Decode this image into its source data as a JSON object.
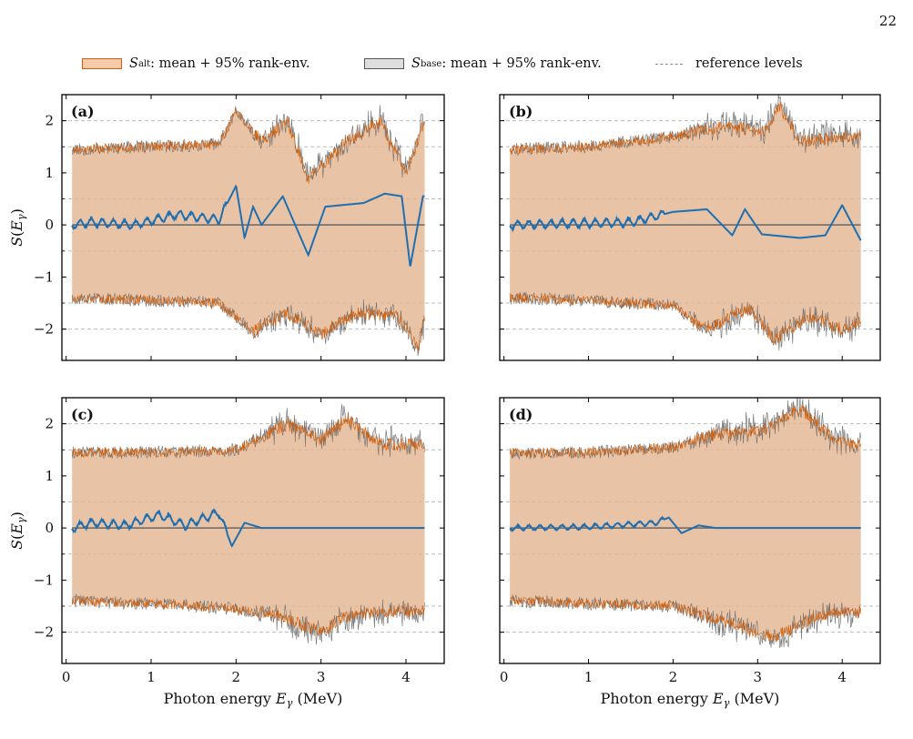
{
  "page_number": "22",
  "legend": {
    "alt_symbol": "S",
    "alt_sub": "alt",
    "alt_label": ": mean + 95% rank-env.",
    "base_symbol": "S",
    "base_sub": "base",
    "base_label": ": mean + 95% rank-env.",
    "ref_label": "reference levels"
  },
  "colors": {
    "alt_line": "#d35f0a",
    "alt_fill": "#f0b07e",
    "base_line": "#6e6e6e",
    "base_fill": "#c4c4c4",
    "overlap_fill": "#d6b8a0",
    "mean_line": "#1f6fb0",
    "zero_line": "#666666",
    "ref_line": "#bdbdbd"
  },
  "chart_data": [
    {
      "type": "area",
      "panel_label": "(a)",
      "xlabel": "",
      "ylabel": "S(Eγ)",
      "xlim": [
        -0.05,
        4.45
      ],
      "ylim": [
        -2.6,
        2.5
      ],
      "xticks": [
        0,
        1,
        2,
        3,
        4
      ],
      "yticks": [
        -2,
        -1,
        0,
        1,
        2
      ],
      "reference_levels": [
        -2,
        -1.5,
        -0.5,
        0.5,
        1.5,
        2
      ],
      "x_range": [
        0.07,
        4.22
      ],
      "envelope_upper_points": [
        [
          0.07,
          1.45
        ],
        [
          1.0,
          1.5
        ],
        [
          1.8,
          1.55
        ],
        [
          2.0,
          2.2
        ],
        [
          2.3,
          1.6
        ],
        [
          2.6,
          2.0
        ],
        [
          2.85,
          0.9
        ],
        [
          3.3,
          1.6
        ],
        [
          3.7,
          2.0
        ],
        [
          4.0,
          1.0
        ],
        [
          4.22,
          2.0
        ]
      ],
      "envelope_lower_points": [
        [
          0.07,
          -1.4
        ],
        [
          1.0,
          -1.45
        ],
        [
          1.8,
          -1.5
        ],
        [
          2.2,
          -2.05
        ],
        [
          2.6,
          -1.7
        ],
        [
          3.0,
          -2.1
        ],
        [
          3.4,
          -1.7
        ],
        [
          3.9,
          -1.75
        ],
        [
          4.15,
          -2.35
        ],
        [
          4.22,
          -1.8
        ]
      ],
      "series": [
        {
          "name": "mean",
          "points": [
            [
              0.07,
              0.0
            ],
            [
              0.3,
              0.05
            ],
            [
              0.8,
              0.0
            ],
            [
              1.3,
              0.2
            ],
            [
              1.8,
              0.1
            ],
            [
              2.0,
              0.75
            ],
            [
              2.1,
              -0.25
            ],
            [
              2.2,
              0.35
            ],
            [
              2.3,
              0.0
            ],
            [
              2.55,
              0.55
            ],
            [
              2.85,
              -0.58
            ],
            [
              3.05,
              0.35
            ],
            [
              3.5,
              0.42
            ],
            [
              3.75,
              0.6
            ],
            [
              3.95,
              0.55
            ],
            [
              4.05,
              -0.8
            ],
            [
              4.2,
              0.55
            ]
          ]
        }
      ]
    },
    {
      "type": "area",
      "panel_label": "(b)",
      "xlabel": "",
      "ylabel": "",
      "xlim": [
        -0.05,
        4.45
      ],
      "ylim": [
        -2.6,
        2.5
      ],
      "xticks": [
        0,
        1,
        2,
        3,
        4
      ],
      "yticks": [
        -2,
        -1,
        0,
        1,
        2
      ],
      "reference_levels": [
        -2,
        -1.5,
        -0.5,
        0.5,
        1.5,
        2
      ],
      "x_range": [
        0.07,
        4.22
      ],
      "envelope_upper_points": [
        [
          0.07,
          1.45
        ],
        [
          1.0,
          1.5
        ],
        [
          2.0,
          1.7
        ],
        [
          2.6,
          1.9
        ],
        [
          3.1,
          1.8
        ],
        [
          3.25,
          2.3
        ],
        [
          3.5,
          1.6
        ],
        [
          4.0,
          1.7
        ],
        [
          4.22,
          1.7
        ]
      ],
      "envelope_lower_points": [
        [
          0.07,
          -1.4
        ],
        [
          1.0,
          -1.45
        ],
        [
          2.0,
          -1.55
        ],
        [
          2.4,
          -2.0
        ],
        [
          2.9,
          -1.6
        ],
        [
          3.2,
          -2.2
        ],
        [
          3.6,
          -1.75
        ],
        [
          4.0,
          -2.0
        ],
        [
          4.22,
          -1.85
        ]
      ],
      "series": [
        {
          "name": "mean",
          "points": [
            [
              0.07,
              0.0
            ],
            [
              1.5,
              0.05
            ],
            [
              2.0,
              0.25
            ],
            [
              2.4,
              0.3
            ],
            [
              2.7,
              -0.2
            ],
            [
              2.85,
              0.3
            ],
            [
              3.05,
              -0.18
            ],
            [
              3.5,
              -0.25
            ],
            [
              3.8,
              -0.2
            ],
            [
              4.0,
              0.38
            ],
            [
              4.22,
              -0.3
            ]
          ]
        }
      ]
    },
    {
      "type": "area",
      "panel_label": "(c)",
      "xlabel": "Photon energy Eγ (MeV)",
      "ylabel": "S(Eγ)",
      "xlim": [
        -0.05,
        4.45
      ],
      "ylim": [
        -2.6,
        2.5
      ],
      "xticks": [
        0,
        1,
        2,
        3,
        4
      ],
      "yticks": [
        -2,
        -1,
        0,
        1,
        2
      ],
      "reference_levels": [
        -2,
        -1.5,
        -0.5,
        0.5,
        1.5,
        2
      ],
      "x_range": [
        0.07,
        4.22
      ],
      "envelope_upper_points": [
        [
          0.07,
          1.45
        ],
        [
          1.0,
          1.45
        ],
        [
          2.0,
          1.5
        ],
        [
          2.6,
          2.0
        ],
        [
          3.0,
          1.7
        ],
        [
          3.3,
          2.1
        ],
        [
          3.7,
          1.6
        ],
        [
          4.22,
          1.6
        ]
      ],
      "envelope_lower_points": [
        [
          0.07,
          -1.4
        ],
        [
          1.0,
          -1.45
        ],
        [
          2.0,
          -1.55
        ],
        [
          2.5,
          -1.7
        ],
        [
          3.0,
          -2.0
        ],
        [
          3.3,
          -1.7
        ],
        [
          3.8,
          -1.6
        ],
        [
          4.22,
          -1.6
        ]
      ],
      "series": [
        {
          "name": "mean",
          "points": [
            [
              0.07,
              0.0
            ],
            [
              0.3,
              0.1
            ],
            [
              0.7,
              0.05
            ],
            [
              1.1,
              0.25
            ],
            [
              1.4,
              0.05
            ],
            [
              1.8,
              0.3
            ],
            [
              1.95,
              -0.35
            ],
            [
              2.1,
              0.1
            ],
            [
              2.3,
              0.0
            ],
            [
              4.22,
              0.0
            ]
          ]
        }
      ]
    },
    {
      "type": "area",
      "panel_label": "(d)",
      "xlabel": "Photon energy Eγ (MeV)",
      "ylabel": "",
      "xlim": [
        -0.05,
        4.45
      ],
      "ylim": [
        -2.6,
        2.5
      ],
      "xticks": [
        0,
        1,
        2,
        3,
        4
      ],
      "yticks": [
        -2,
        -1,
        0,
        1,
        2
      ],
      "reference_levels": [
        -2,
        -1.5,
        -0.5,
        0.5,
        1.5,
        2
      ],
      "x_range": [
        0.07,
        4.22
      ],
      "envelope_upper_points": [
        [
          0.07,
          1.45
        ],
        [
          1.0,
          1.45
        ],
        [
          2.0,
          1.55
        ],
        [
          2.5,
          1.8
        ],
        [
          3.1,
          1.9
        ],
        [
          3.5,
          2.3
        ],
        [
          3.9,
          1.7
        ],
        [
          4.22,
          1.6
        ]
      ],
      "envelope_lower_points": [
        [
          0.07,
          -1.4
        ],
        [
          1.0,
          -1.45
        ],
        [
          2.0,
          -1.5
        ],
        [
          2.6,
          -1.8
        ],
        [
          3.2,
          -2.1
        ],
        [
          3.7,
          -1.7
        ],
        [
          4.22,
          -1.6
        ]
      ],
      "series": [
        {
          "name": "mean",
          "points": [
            [
              0.07,
              0.0
            ],
            [
              1.0,
              0.02
            ],
            [
              1.8,
              0.1
            ],
            [
              1.95,
              0.2
            ],
            [
              2.1,
              -0.1
            ],
            [
              2.3,
              0.05
            ],
            [
              2.5,
              0.0
            ],
            [
              4.22,
              0.0
            ]
          ]
        }
      ]
    }
  ]
}
